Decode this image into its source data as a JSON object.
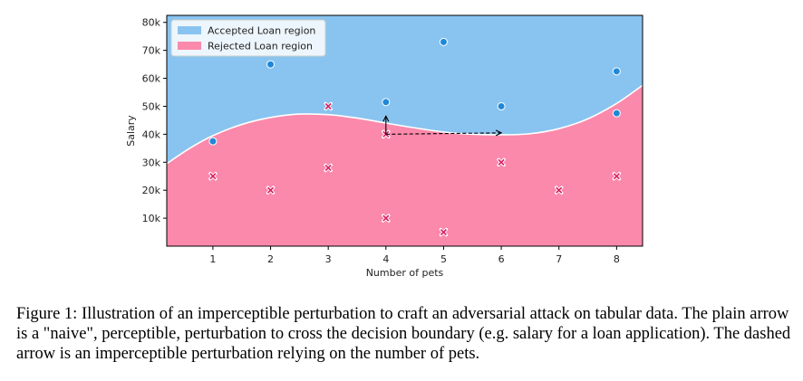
{
  "chart_data": {
    "type": "scatter",
    "xlabel": "Number of pets",
    "ylabel": "Salary",
    "xlim": [
      0.2,
      8.45
    ],
    "ylim": [
      0,
      82500
    ],
    "xticks": [
      1,
      2,
      3,
      4,
      5,
      6,
      7,
      8
    ],
    "xtick_labels": [
      "1",
      "2",
      "3",
      "4",
      "5",
      "6",
      "7",
      "8"
    ],
    "yticks": [
      10000,
      20000,
      30000,
      40000,
      50000,
      60000,
      70000,
      80000
    ],
    "ytick_labels": [
      "10k",
      "20k",
      "30k",
      "40k",
      "50k",
      "60k",
      "70k",
      "80k"
    ],
    "legend_position": "top-left",
    "regions": [
      {
        "name": "Accepted Loan region",
        "color": "#89c4f0"
      },
      {
        "name": "Rejected Loan region",
        "color": "#fb89ab"
      }
    ],
    "decision_boundary": {
      "x": [
        0.2,
        0.6,
        1,
        1.5,
        2,
        2.5,
        3,
        3.5,
        4,
        4.5,
        5,
        5.5,
        6,
        6.5,
        7,
        7.5,
        8,
        8.45
      ],
      "y": [
        29500,
        35000,
        39500,
        43500,
        46000,
        47200,
        47000,
        45800,
        44000,
        42300,
        40800,
        40000,
        39800,
        40200,
        42000,
        45500,
        51000,
        57500
      ]
    },
    "series": [
      {
        "name": "Accepted",
        "marker": "circle",
        "color": "#1f88d8",
        "x": [
          1,
          2,
          4,
          5,
          6,
          8,
          8
        ],
        "y": [
          37500,
          65000,
          51500,
          73000,
          50000,
          62500,
          47500
        ]
      },
      {
        "name": "Rejected",
        "marker": "x",
        "color": "#d81b60",
        "x": [
          1,
          2,
          3,
          3,
          4,
          4,
          5,
          6,
          7,
          8
        ],
        "y": [
          25000,
          20000,
          50000,
          28000,
          40000,
          10000,
          5000,
          30000,
          20000,
          25000
        ]
      }
    ],
    "arrows": [
      {
        "style": "solid",
        "from": [
          4,
          40000
        ],
        "to": [
          4,
          46500
        ]
      },
      {
        "style": "dashed",
        "from": [
          4,
          40000
        ],
        "to": [
          6,
          40500
        ]
      }
    ]
  },
  "caption": {
    "text": "Figure 1: Illustration of an imperceptible perturbation to craft an adversarial attack on tabular data. The plain arrow is a \"naive\", perceptible, perturbation to cross the decision boundary (e.g. salary for a loan application). The dashed arrow is an imperceptible perturbation relying on the number of pets."
  }
}
